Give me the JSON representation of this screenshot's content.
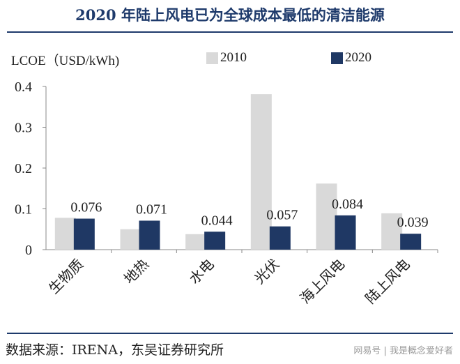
{
  "title": "2020 年陆上风电已为全球成本最低的清洁能源",
  "source": "数据来源：IRENA，东吴证券研究所",
  "watermark": "网易号 | 我是概念爱好者",
  "colors": {
    "title": "#1e3a6b",
    "s2010": "#d9d9d9",
    "s2020": "#1f3864"
  },
  "chart_data": {
    "type": "bar",
    "ylabel": "LCOE（USD/kWh)",
    "categories": [
      "生物质",
      "地热",
      "水电",
      "光伏",
      "海上风电",
      "陆上风电"
    ],
    "series": [
      {
        "name": "2010",
        "values": [
          0.078,
          0.05,
          0.038,
          0.381,
          0.162,
          0.089
        ]
      },
      {
        "name": "2020",
        "values": [
          0.076,
          0.071,
          0.044,
          0.057,
          0.084,
          0.039
        ]
      }
    ],
    "data_labels": [
      "0.076",
      "0.071",
      "0.044",
      "0.057",
      "0.084",
      "0.039"
    ],
    "yticks": [
      "0",
      "0.1",
      "0.2",
      "0.3",
      "0.4"
    ],
    "ylim": [
      0,
      0.4
    ],
    "legend": "top",
    "grid": false
  }
}
